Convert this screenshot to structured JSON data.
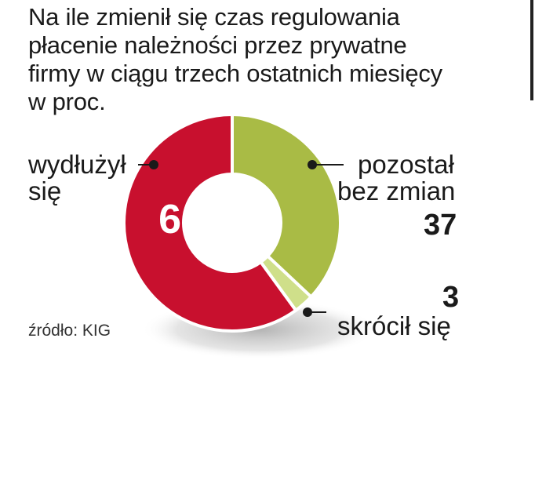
{
  "title_lines": [
    "Na ile zmienił się czas regulowania",
    "płacenie należności przez prywatne",
    "firmy w ciągu trzech ostatnich miesięcy",
    "w proc."
  ],
  "source": "źródło: KIG",
  "colors": {
    "longer": "#c8102e",
    "unchanged": "#a9bb45",
    "shorter": "#cfdf8a"
  },
  "chart_data": {
    "type": "pie",
    "donut": true,
    "series": [
      {
        "name": "wydłużył się",
        "value": 60
      },
      {
        "name": "pozostał bez zmian",
        "value": 37
      },
      {
        "name": "skrócił się",
        "value": 3
      }
    ],
    "labels": {
      "longer_line1": "wydłużył",
      "longer_line2": "się",
      "longer_value": "60",
      "unchanged_line1": "pozostał",
      "unchanged_line2": "bez zmian",
      "unchanged_value": "37",
      "shorter_line1": "skrócił się",
      "shorter_value": "3"
    }
  }
}
